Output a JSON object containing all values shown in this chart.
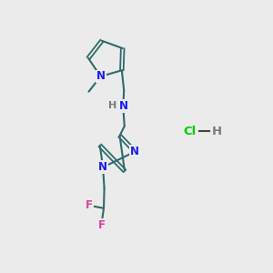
{
  "bg_color": "#ebebeb",
  "bond_color": "#2d6b6b",
  "n_color": "#1a1aff",
  "h_color": "#7a7a7a",
  "f_color": "#e040a0",
  "cl_color": "#00cc00",
  "figsize": [
    3.0,
    3.0
  ],
  "dpi": 100,
  "xlim": [
    0,
    10
  ],
  "ylim": [
    0,
    10
  ]
}
